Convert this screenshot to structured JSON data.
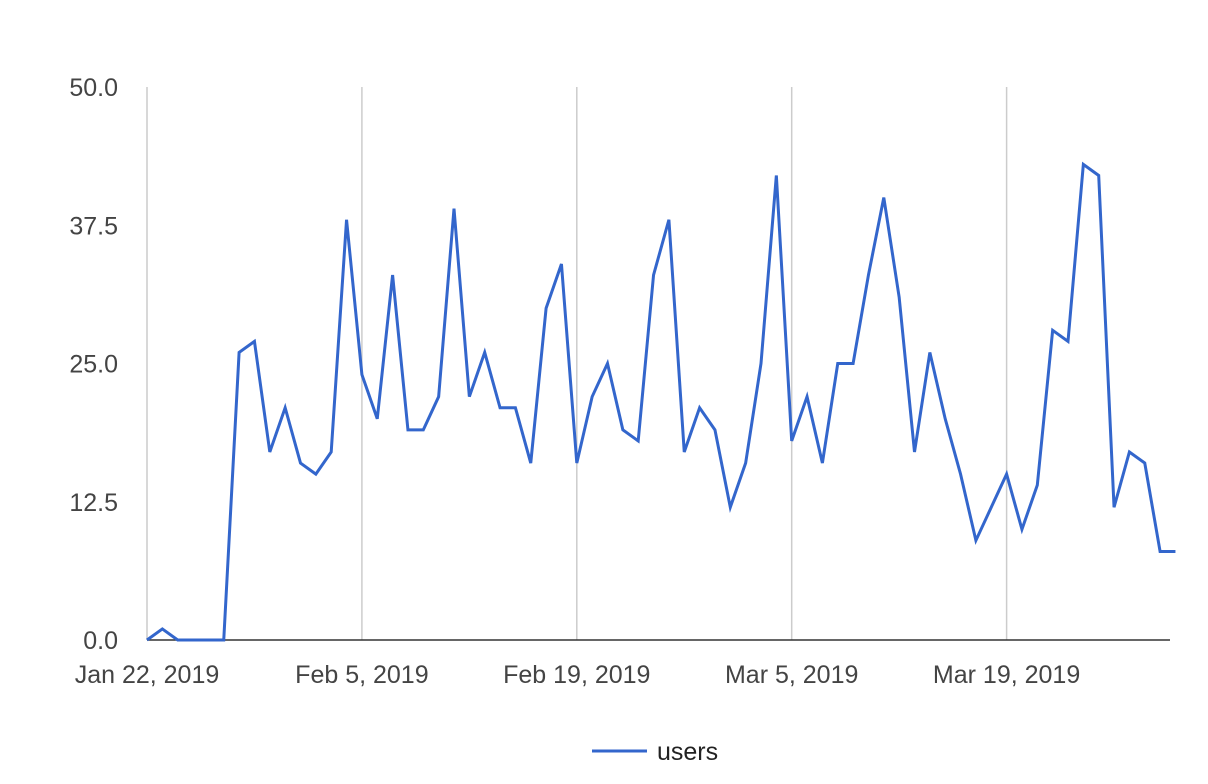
{
  "chart_data": {
    "type": "line",
    "x": [
      "Jan 22, 2019",
      "Jan 23, 2019",
      "Jan 24, 2019",
      "Jan 25, 2019",
      "Jan 26, 2019",
      "Jan 27, 2019",
      "Jan 28, 2019",
      "Jan 29, 2019",
      "Jan 30, 2019",
      "Jan 31, 2019",
      "Feb 1, 2019",
      "Feb 2, 2019",
      "Feb 3, 2019",
      "Feb 4, 2019",
      "Feb 5, 2019",
      "Feb 6, 2019",
      "Feb 7, 2019",
      "Feb 8, 2019",
      "Feb 9, 2019",
      "Feb 10, 2019",
      "Feb 11, 2019",
      "Feb 12, 2019",
      "Feb 13, 2019",
      "Feb 14, 2019",
      "Feb 15, 2019",
      "Feb 16, 2019",
      "Feb 17, 2019",
      "Feb 18, 2019",
      "Feb 19, 2019",
      "Feb 20, 2019",
      "Feb 21, 2019",
      "Feb 22, 2019",
      "Feb 23, 2019",
      "Feb 24, 2019",
      "Feb 25, 2019",
      "Feb 26, 2019",
      "Feb 27, 2019",
      "Feb 28, 2019",
      "Mar 1, 2019",
      "Mar 2, 2019",
      "Mar 3, 2019",
      "Mar 4, 2019",
      "Mar 5, 2019",
      "Mar 6, 2019",
      "Mar 7, 2019",
      "Mar 8, 2019",
      "Mar 9, 2019",
      "Mar 10, 2019",
      "Mar 11, 2019",
      "Mar 12, 2019",
      "Mar 13, 2019",
      "Mar 14, 2019",
      "Mar 15, 2019",
      "Mar 16, 2019",
      "Mar 17, 2019",
      "Mar 18, 2019",
      "Mar 19, 2019",
      "Mar 20, 2019",
      "Mar 21, 2019",
      "Mar 22, 2019",
      "Mar 23, 2019",
      "Mar 24, 2019",
      "Mar 25, 2019",
      "Mar 26, 2019",
      "Mar 27, 2019",
      "Mar 28, 2019",
      "Mar 29, 2019",
      "Mar 30, 2019"
    ],
    "series": [
      {
        "name": "users",
        "color": "#3366cc",
        "values": [
          0,
          1,
          0,
          0,
          0,
          0,
          26,
          27,
          17,
          21,
          16,
          15,
          17,
          38,
          24,
          20,
          33,
          19,
          19,
          22,
          39,
          22,
          26,
          21,
          21,
          16,
          30,
          34,
          16,
          22,
          25,
          19,
          18,
          33,
          38,
          17,
          21,
          19,
          12,
          16,
          25,
          42,
          18,
          22,
          16,
          25,
          25,
          33,
          40,
          31,
          17,
          26,
          20,
          15,
          9,
          12,
          15,
          10,
          14,
          28,
          27,
          43,
          42,
          12,
          17,
          16,
          8,
          8
        ]
      }
    ],
    "y_ticks": [
      "0.0",
      "12.5",
      "25.0",
      "37.5",
      "50.0"
    ],
    "x_ticks": [
      "Jan 22, 2019",
      "Feb 5, 2019",
      "Feb 19, 2019",
      "Mar 5, 2019",
      "Mar 19, 2019"
    ],
    "ylim": [
      0,
      50
    ],
    "grid": "vertical",
    "legend": "bottom",
    "title": "",
    "xlabel": "",
    "ylabel": ""
  }
}
